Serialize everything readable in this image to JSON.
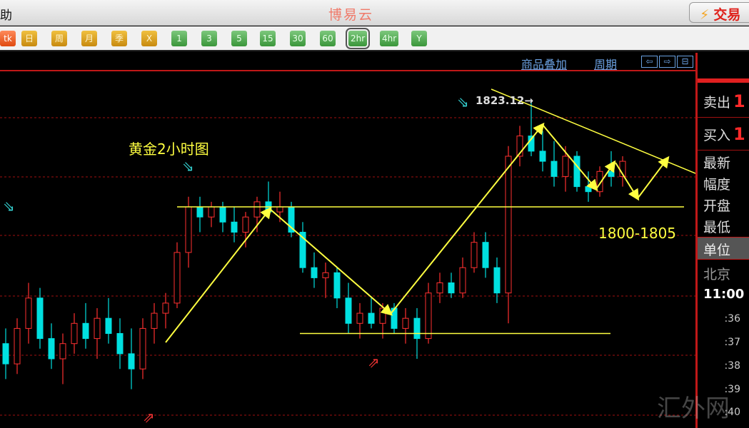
{
  "titlebar": {
    "menu_partial": "助",
    "app_title": "博易云",
    "trade_button": "交易",
    "trade_icon": "lightning-icon"
  },
  "toolbar": {
    "periods": [
      {
        "label": "tk",
        "style": "r"
      },
      {
        "label": "日",
        "style": "o"
      },
      {
        "label": "周",
        "style": "o"
      },
      {
        "label": "月",
        "style": "o"
      },
      {
        "label": "季",
        "style": "o"
      },
      {
        "label": "X",
        "style": "o"
      },
      {
        "label": "1",
        "style": "g"
      },
      {
        "label": "3",
        "style": "g"
      },
      {
        "label": "5",
        "style": "g"
      },
      {
        "label": "15",
        "style": "g"
      },
      {
        "label": "30",
        "style": "g"
      },
      {
        "label": "60",
        "style": "g"
      },
      {
        "label": "2hr",
        "style": "g",
        "selected": true
      },
      {
        "label": "4hr",
        "style": "g"
      },
      {
        "label": "Y",
        "style": "g"
      }
    ]
  },
  "linkbar": {
    "overlay": "商品叠加",
    "period": "周期",
    "nav": [
      "⇦",
      "⇨",
      "⊟"
    ]
  },
  "chart": {
    "title_annotation": "黄金2小时图",
    "high_label": "1823.12→",
    "range_annotation": "1800-1805"
  },
  "chart_data": {
    "type": "candlestick",
    "colors": {
      "up": "#ff3030",
      "down": "#00e0e0",
      "annotation": "#ffff40",
      "grid": "#a01010"
    },
    "ohlc": [
      [
        1775,
        1778,
        1768,
        1771
      ],
      [
        1771,
        1780,
        1769,
        1778
      ],
      [
        1778,
        1787,
        1775,
        1784
      ],
      [
        1784,
        1786,
        1774,
        1776
      ],
      [
        1776,
        1779,
        1770,
        1772
      ],
      [
        1772,
        1777,
        1767,
        1775
      ],
      [
        1775,
        1781,
        1773,
        1779
      ],
      [
        1779,
        1783,
        1774,
        1776
      ],
      [
        1776,
        1782,
        1772,
        1780
      ],
      [
        1780,
        1784,
        1775,
        1777
      ],
      [
        1777,
        1780,
        1770,
        1773
      ],
      [
        1773,
        1778,
        1766,
        1770
      ],
      [
        1770,
        1780,
        1768,
        1778
      ],
      [
        1778,
        1783,
        1775,
        1781
      ],
      [
        1781,
        1785,
        1778,
        1783
      ],
      [
        1783,
        1795,
        1782,
        1793
      ],
      [
        1793,
        1804,
        1790,
        1802
      ],
      [
        1802,
        1804,
        1797,
        1800
      ],
      [
        1800,
        1803,
        1798,
        1802
      ],
      [
        1802,
        1803,
        1797,
        1799
      ],
      [
        1799,
        1802,
        1795,
        1797
      ],
      [
        1797,
        1801,
        1794,
        1800
      ],
      [
        1800,
        1804,
        1797,
        1803
      ],
      [
        1803,
        1807,
        1800,
        1801
      ],
      [
        1801,
        1805,
        1799,
        1802
      ],
      [
        1802,
        1803,
        1796,
        1797
      ],
      [
        1797,
        1799,
        1789,
        1790
      ],
      [
        1790,
        1793,
        1786,
        1788
      ],
      [
        1788,
        1791,
        1784,
        1789
      ],
      [
        1789,
        1790,
        1782,
        1784
      ],
      [
        1784,
        1787,
        1777,
        1779
      ],
      [
        1779,
        1783,
        1776,
        1781
      ],
      [
        1781,
        1784,
        1778,
        1779
      ],
      [
        1779,
        1783,
        1776,
        1782
      ],
      [
        1782,
        1783,
        1777,
        1778
      ],
      [
        1778,
        1782,
        1775,
        1780
      ],
      [
        1780,
        1782,
        1772,
        1776
      ],
      [
        1776,
        1787,
        1775,
        1785
      ],
      [
        1785,
        1789,
        1783,
        1787
      ],
      [
        1787,
        1789,
        1784,
        1785
      ],
      [
        1785,
        1792,
        1784,
        1790
      ],
      [
        1790,
        1797,
        1789,
        1795
      ],
      [
        1795,
        1797,
        1788,
        1790
      ],
      [
        1790,
        1792,
        1783,
        1785
      ],
      [
        1785,
        1814,
        1779,
        1812
      ],
      [
        1812,
        1818,
        1810,
        1816
      ],
      [
        1816,
        1823.12,
        1812,
        1813
      ],
      [
        1813,
        1817,
        1809,
        1811
      ],
      [
        1811,
        1815,
        1806,
        1808
      ],
      [
        1808,
        1814,
        1805,
        1812
      ],
      [
        1812,
        1813,
        1805,
        1806
      ],
      [
        1806,
        1809,
        1803,
        1805
      ],
      [
        1805,
        1810,
        1804,
        1809
      ],
      [
        1809,
        1813,
        1806,
        1808
      ],
      [
        1808,
        1812,
        1806,
        1811
      ]
    ],
    "support_lines": [
      1802,
      1777
    ]
  },
  "rpanel": {
    "sell": "卖出",
    "buy": "买入",
    "price_partial": "1",
    "labels": [
      "最新",
      "幅度",
      "开盘",
      "最低"
    ],
    "unit": "单位",
    "city": "北京",
    "time": "11:00",
    "ticks": [
      ":36",
      ":37",
      ":38",
      ":39",
      ":40"
    ]
  },
  "watermark": "汇外网"
}
